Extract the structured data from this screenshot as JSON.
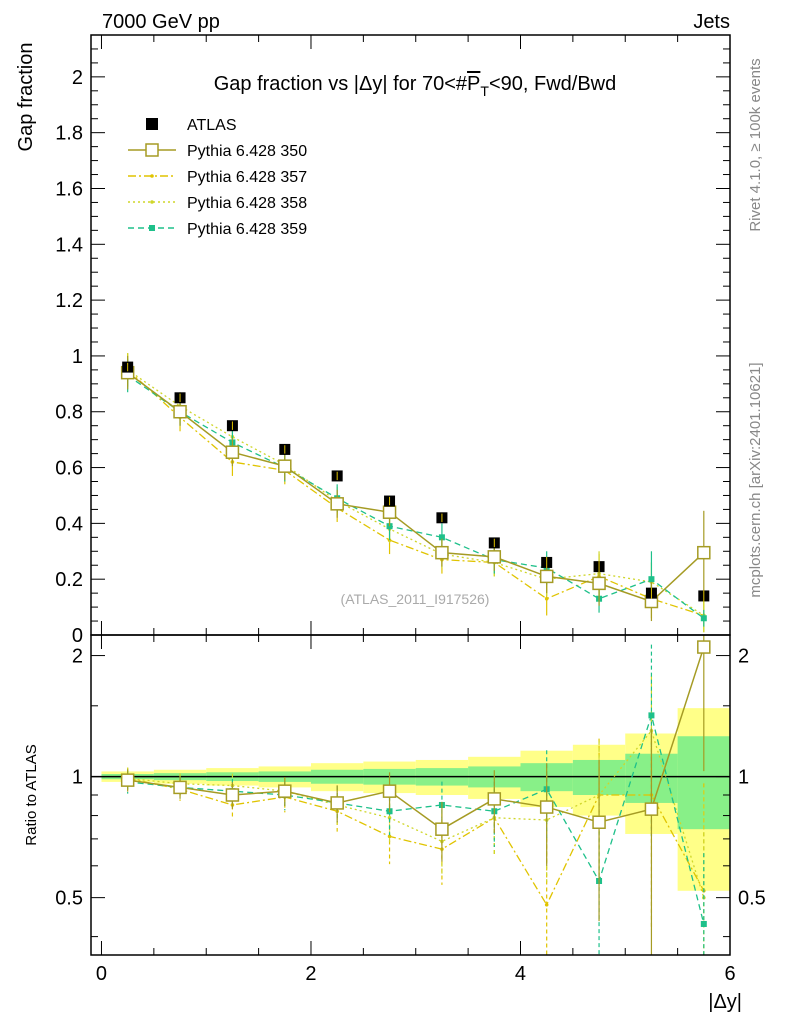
{
  "header": {
    "left": "7000 GeV pp",
    "right": "Jets"
  },
  "title": {
    "prefix": "Gap fraction vs |Δy| for 70<#",
    "p": "P",
    "sub": "T",
    "suffix": "<90, Fwd/Bwd"
  },
  "watermark": "(ATLAS_2011_I917526)",
  "side_text": {
    "rivet": "Rivet 4.1.0, ≥ 100k events",
    "mcplots": "mcplots.cern.ch [arXiv:2401.10621]"
  },
  "colors": {
    "atlas": "#000000",
    "p350": "#a59b24",
    "p357": "#e0c400",
    "p358": "#cfd62a",
    "p359": "#1ec08a",
    "band_yellow": "#ffff88",
    "band_green": "#88f088"
  },
  "chart_data": [
    {
      "type": "scatter",
      "title": "Gap fraction vs |Δy| for 70<#P_T<90, Fwd/Bwd",
      "ylabel": "Gap fraction",
      "xlim": [
        -0.1,
        6.0
      ],
      "ylim": [
        0,
        2.15
      ],
      "yticks": [
        0,
        0.2,
        0.4,
        0.6,
        0.8,
        1,
        1.2,
        1.4,
        1.6,
        1.8,
        2
      ],
      "ytick_labels": [
        "0",
        "0.2",
        "0.4",
        "0.6",
        "0.8",
        "1",
        "1.2",
        "1.4",
        "1.6",
        "1.8",
        "2"
      ],
      "x": [
        0.25,
        0.75,
        1.25,
        1.75,
        2.25,
        2.75,
        3.25,
        3.75,
        4.25,
        4.75,
        5.25,
        5.75
      ],
      "series": [
        {
          "name": "ATLAS",
          "key": "atlas",
          "style": "square",
          "values": [
            0.96,
            0.85,
            0.75,
            0.665,
            0.57,
            0.48,
            0.42,
            0.33,
            0.26,
            0.245,
            0.15,
            0.14
          ],
          "errors": [
            0.015,
            0.015,
            0.015,
            0.015,
            0.015,
            0.015,
            0.015,
            0.015,
            0.02,
            0.02,
            0.02,
            0.02
          ]
        },
        {
          "name": "Pythia 6.428 350",
          "key": "p350",
          "style": "open-square-solid",
          "values": [
            0.94,
            0.8,
            0.655,
            0.605,
            0.47,
            0.44,
            0.295,
            0.28,
            0.21,
            0.185,
            0.12,
            0.295
          ],
          "errors": [
            0.06,
            0.05,
            0.05,
            0.05,
            0.05,
            0.05,
            0.05,
            0.05,
            0.06,
            0.08,
            0.07,
            0.15
          ]
        },
        {
          "name": "Pythia 6.428 357",
          "key": "p357",
          "style": "dashdot",
          "values": [
            0.95,
            0.78,
            0.62,
            0.59,
            0.455,
            0.34,
            0.27,
            0.26,
            0.13,
            0.21,
            0.13,
            0.07
          ],
          "errors": [
            0.06,
            0.05,
            0.05,
            0.05,
            0.05,
            0.05,
            0.05,
            0.05,
            0.06,
            0.08,
            0.07,
            0.06
          ]
        },
        {
          "name": "Pythia 6.428 358",
          "key": "p358",
          "style": "dotted",
          "values": [
            0.95,
            0.82,
            0.71,
            0.61,
            0.48,
            0.38,
            0.29,
            0.26,
            0.2,
            0.22,
            0.19,
            0.07
          ],
          "errors": [
            0.06,
            0.05,
            0.05,
            0.05,
            0.05,
            0.05,
            0.05,
            0.05,
            0.06,
            0.08,
            0.07,
            0.06
          ]
        },
        {
          "name": "Pythia 6.428 359",
          "key": "p359",
          "style": "dashed-square",
          "values": [
            0.93,
            0.8,
            0.69,
            0.6,
            0.49,
            0.39,
            0.35,
            0.27,
            0.24,
            0.13,
            0.2,
            0.06
          ],
          "errors": [
            0.06,
            0.05,
            0.05,
            0.05,
            0.05,
            0.05,
            0.05,
            0.05,
            0.06,
            0.05,
            0.1,
            0.03
          ]
        }
      ]
    },
    {
      "type": "scatter",
      "title": "Ratio to ATLAS",
      "xlabel": "|Δy|",
      "ylabel": "Ratio to ATLAS",
      "xlim": [
        -0.1,
        6.0
      ],
      "ylim": [
        0.36,
        2.25
      ],
      "ylog": true,
      "xticks": [
        0,
        2,
        4,
        6
      ],
      "xtick_labels": [
        "0",
        "2",
        "4",
        "6"
      ],
      "yticks": [
        0.5,
        1,
        2
      ],
      "ytick_labels": [
        "0.5",
        "1",
        "2"
      ],
      "x": [
        0.25,
        0.75,
        1.25,
        1.75,
        2.25,
        2.75,
        3.25,
        3.75,
        4.25,
        4.75,
        5.25,
        5.75
      ],
      "band_green": [
        0.015,
        0.02,
        0.025,
        0.03,
        0.04,
        0.045,
        0.05,
        0.06,
        0.08,
        0.1,
        0.14,
        0.26
      ],
      "band_yellow": [
        0.03,
        0.04,
        0.05,
        0.06,
        0.08,
        0.09,
        0.1,
        0.12,
        0.16,
        0.2,
        0.28,
        0.48
      ],
      "series": [
        {
          "name": "Pythia 6.428 350",
          "key": "p350",
          "values": [
            0.98,
            0.94,
            0.9,
            0.92,
            0.86,
            0.92,
            0.74,
            0.88,
            0.84,
            0.77,
            0.83,
            2.1
          ]
        },
        {
          "name": "Pythia 6.428 357",
          "key": "p357",
          "values": [
            0.99,
            0.93,
            0.85,
            0.89,
            0.82,
            0.71,
            0.66,
            0.79,
            0.48,
            0.9,
            0.9,
            0.52
          ]
        },
        {
          "name": "Pythia 6.428 358",
          "key": "p358",
          "values": [
            0.99,
            0.96,
            0.95,
            0.92,
            0.85,
            0.79,
            0.69,
            0.79,
            0.78,
            0.9,
            1.3,
            0.5
          ]
        },
        {
          "name": "Pythia 6.428 359",
          "key": "p359",
          "values": [
            0.97,
            0.94,
            0.92,
            0.9,
            0.86,
            0.82,
            0.85,
            0.82,
            0.93,
            0.55,
            1.42,
            0.43
          ]
        }
      ]
    }
  ]
}
